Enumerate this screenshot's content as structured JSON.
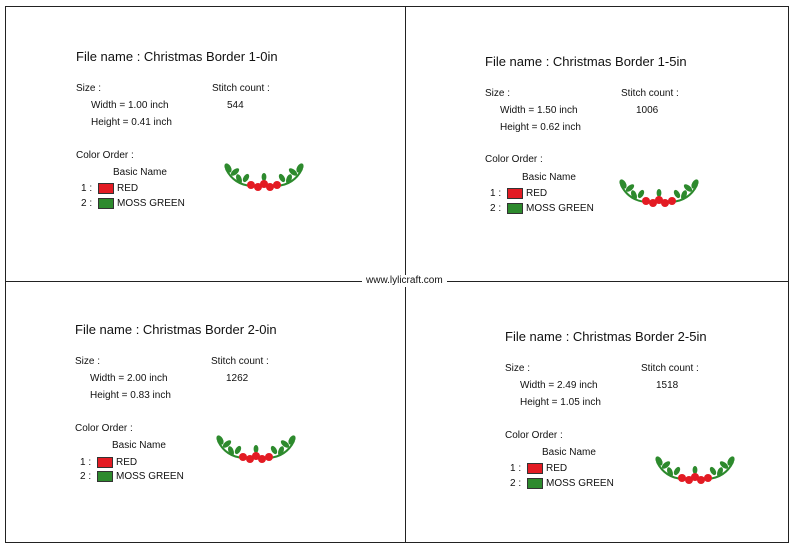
{
  "watermark": "www.lylicraft.com",
  "colors": {
    "red": "#e31b23",
    "moss_green": "#2d8a2d"
  },
  "panels": [
    {
      "file_name": "File name : Christmas Border 1-0in",
      "size_label": "Size :",
      "width": "Width  = 1.00 inch",
      "height": "Height = 0.41 inch",
      "stitch_label": "Stitch count :",
      "stitch_count": "544",
      "color_order_label": "Color Order :",
      "basic_name_label": "Basic Name",
      "colors": [
        {
          "index": "1 :",
          "name": "RED"
        },
        {
          "index": "2 :",
          "name": "MOSS GREEN"
        }
      ]
    },
    {
      "file_name": "File name : Christmas Border 1-5in",
      "size_label": "Size :",
      "width": "Width  = 1.50 inch",
      "height": "Height = 0.62 inch",
      "stitch_label": "Stitch count :",
      "stitch_count": "1006",
      "color_order_label": "Color Order :",
      "basic_name_label": "Basic Name",
      "colors": [
        {
          "index": "1 :",
          "name": "RED"
        },
        {
          "index": "2 :",
          "name": "MOSS GREEN"
        }
      ]
    },
    {
      "file_name": "File name : Christmas Border 2-0in",
      "size_label": "Size :",
      "width": "Width  = 2.00 inch",
      "height": "Height = 0.83 inch",
      "stitch_label": "Stitch count :",
      "stitch_count": "1262",
      "color_order_label": "Color Order :",
      "basic_name_label": "Basic Name",
      "colors": [
        {
          "index": "1 :",
          "name": "RED"
        },
        {
          "index": "2 :",
          "name": "MOSS GREEN"
        }
      ]
    },
    {
      "file_name": "File name : Christmas Border 2-5in",
      "size_label": "Size :",
      "width": "Width  = 2.49 inch",
      "height": "Height = 1.05 inch",
      "stitch_label": "Stitch count :",
      "stitch_count": "1518",
      "color_order_label": "Color Order :",
      "basic_name_label": "Basic Name",
      "colors": [
        {
          "index": "1 :",
          "name": "RED"
        },
        {
          "index": "2 :",
          "name": "MOSS GREEN"
        }
      ]
    }
  ]
}
